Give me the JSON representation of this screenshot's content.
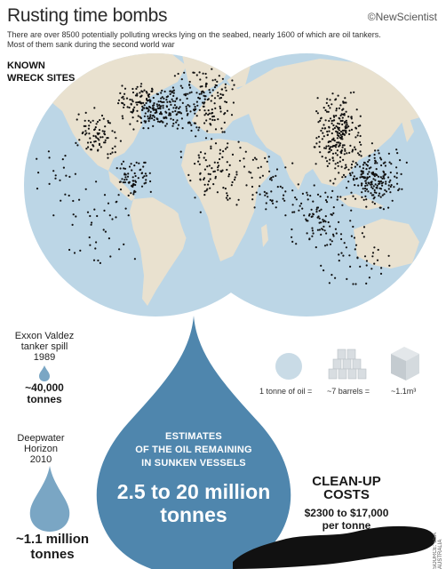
{
  "header": {
    "title": "Rusting time bombs",
    "logo": "©NewScientist",
    "subtitle_line1": "There are over 8500 potentially polluting wrecks lying on the seabed, nearly 1600 of which are oil tankers.",
    "subtitle_line2": "Most of them sank during the second world war"
  },
  "map": {
    "legend_line1": "KNOWN",
    "legend_line2": "WRECK SITES",
    "ocean_color": "#bcd6e6",
    "land_color": "#e9e1cf",
    "wreck_color": "#111111"
  },
  "exxon": {
    "name_line1": "Exxon Valdez",
    "name_line2": "tanker spill",
    "year": "1989",
    "amount": "~40,000",
    "unit": "tonnes"
  },
  "deepwater": {
    "name_line1": "Deepwater",
    "name_line2": "Horizon",
    "year": "2010",
    "amount": "~1.1 million",
    "unit": "tonnes"
  },
  "estimate": {
    "line1": "ESTIMATES",
    "line2": "OF THE OIL REMAINING",
    "line3": "IN SUNKEN VESSELS",
    "range_line1": "2.5 to 20 million",
    "range_line2": "tonnes",
    "drop_color": "#4f86ad"
  },
  "equivalence": {
    "item1": "1 tonne of oil =",
    "item2": "~7 barrels =",
    "item3": "~1.1m³"
  },
  "cleanup": {
    "title_line1": "CLEAN-UP",
    "title_line2": "COSTS",
    "range": "$2300 to $17,000",
    "unit": "per tonne"
  },
  "source": "SOURCE: SEA AUSTRALIA"
}
